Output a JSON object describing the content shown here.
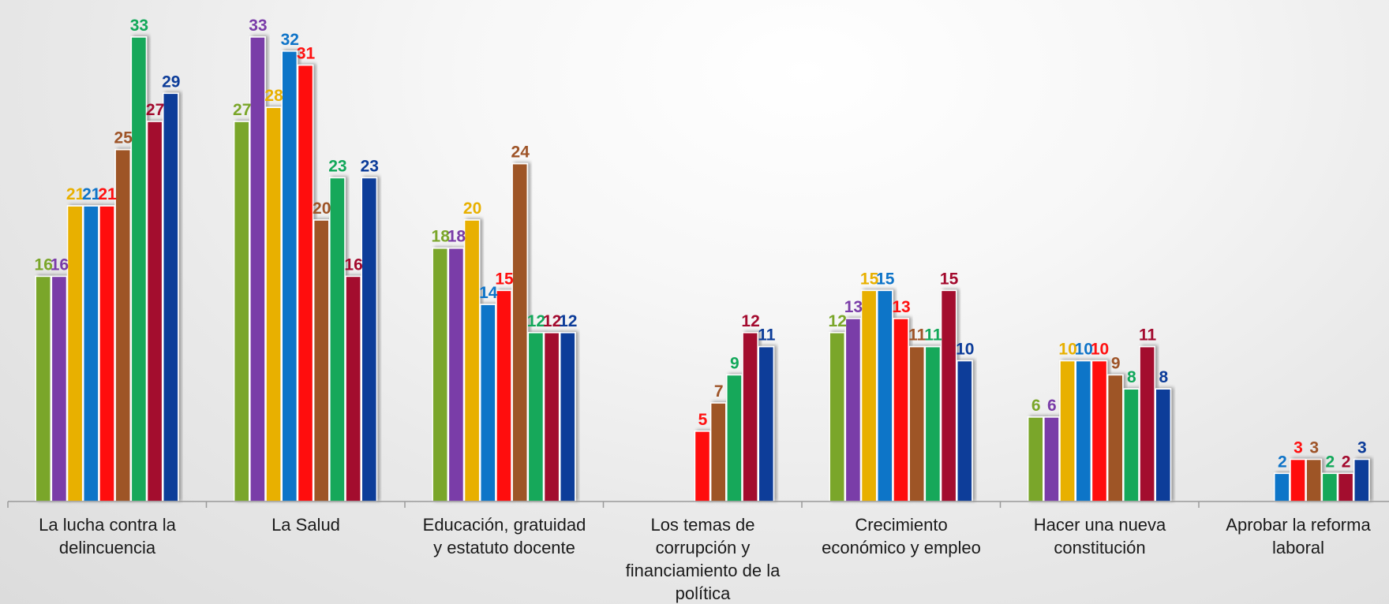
{
  "chart_data": {
    "type": "bar",
    "title": "",
    "xlabel": "",
    "ylabel": "",
    "ylim": [
      0,
      35
    ],
    "grid": false,
    "legend": "none",
    "categories": [
      [
        "La lucha contra la",
        "delincuencia"
      ],
      [
        "La Salud"
      ],
      [
        "Educación, gratuidad",
        "y estatuto docente"
      ],
      [
        "Los temas de",
        "corrupción y",
        "financiamiento de la",
        "política"
      ],
      [
        "Crecimiento",
        "económico y empleo"
      ],
      [
        "Hacer una nueva",
        "constitución"
      ],
      [
        "Aprobar la reforma",
        "laboral"
      ]
    ],
    "series": [
      {
        "color": "#7aa629",
        "values": [
          16,
          27,
          18,
          null,
          12,
          6,
          null
        ]
      },
      {
        "color": "#7a3ca8",
        "values": [
          16,
          33,
          18,
          null,
          13,
          6,
          null
        ]
      },
      {
        "color": "#e8b000",
        "values": [
          21,
          28,
          20,
          null,
          15,
          10,
          null
        ]
      },
      {
        "color": "#0f74c8",
        "values": [
          21,
          32,
          14,
          null,
          15,
          10,
          2
        ]
      },
      {
        "color": "#ff1010",
        "values": [
          21,
          31,
          15,
          5,
          13,
          10,
          3
        ]
      },
      {
        "color": "#9e5428",
        "values": [
          25,
          20,
          24,
          7,
          11,
          9,
          3
        ]
      },
      {
        "color": "#12a85a",
        "values": [
          33,
          23,
          12,
          9,
          11,
          8,
          2
        ]
      },
      {
        "color": "#a30a2e",
        "values": [
          27,
          16,
          12,
          12,
          15,
          11,
          2
        ]
      },
      {
        "color": "#0c3c99",
        "values": [
          29,
          23,
          12,
          11,
          10,
          8,
          3
        ]
      }
    ]
  }
}
